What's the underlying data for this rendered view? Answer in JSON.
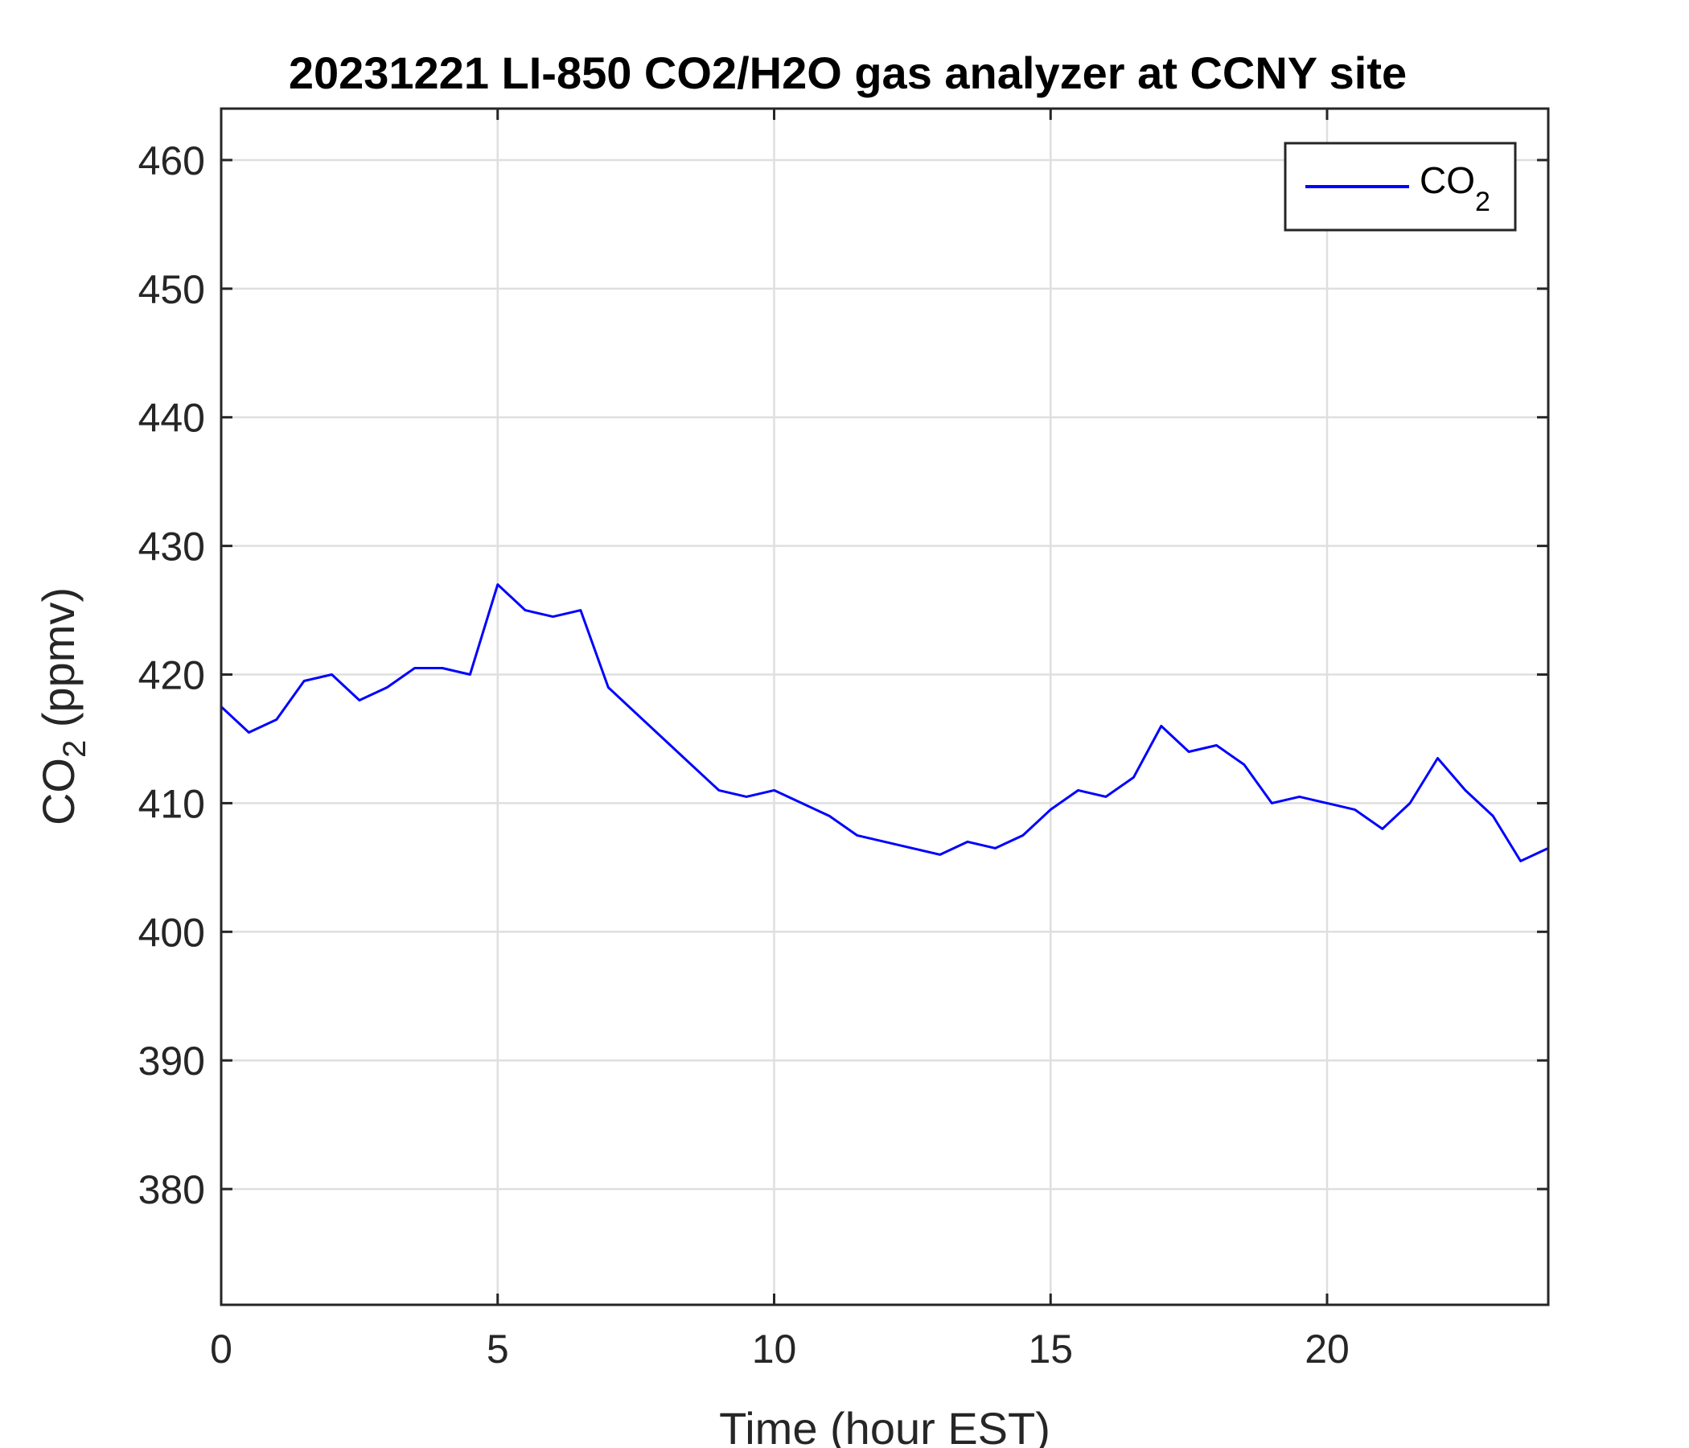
{
  "chart_data": {
    "type": "line",
    "title": "20231221 LI-850 CO2/H2O gas analyzer at CCNY site",
    "xlabel": "Time (hour EST)",
    "ylabel": {
      "main": "CO",
      "sub": "2",
      "unit": " (ppmv)"
    },
    "xlim": [
      0,
      24
    ],
    "ylim": [
      371,
      464
    ],
    "xticks": [
      0,
      5,
      10,
      15,
      20
    ],
    "yticks": [
      380,
      390,
      400,
      410,
      420,
      430,
      440,
      450,
      460
    ],
    "grid": true,
    "legend": {
      "position": "top-right",
      "label": "CO",
      "label_sub": "2"
    },
    "series": [
      {
        "name": "CO2",
        "color": "#0000ff",
        "x": [
          0,
          0.5,
          1,
          1.5,
          2,
          2.5,
          3,
          3.5,
          4,
          4.5,
          5,
          5.5,
          6,
          6.5,
          7,
          7.5,
          8,
          8.5,
          9,
          9.5,
          10,
          10.5,
          11,
          11.5,
          12,
          12.5,
          13,
          13.5,
          14,
          14.5,
          15,
          15.5,
          16,
          16.5,
          17,
          17.5,
          18,
          18.5,
          19,
          19.5,
          20,
          20.5,
          21,
          21.5,
          22,
          22.5,
          23,
          23.5,
          24
        ],
        "y": [
          417.5,
          415.5,
          416.5,
          419.5,
          420,
          418,
          419,
          420.5,
          420.5,
          420,
          427,
          425,
          424.5,
          425,
          419,
          417,
          415,
          413,
          411,
          410.5,
          411,
          410,
          409,
          407.5,
          407,
          406.5,
          406,
          407,
          406.5,
          407.5,
          409.5,
          411,
          410.5,
          412,
          416,
          414,
          414.5,
          413,
          410,
          410.5,
          410,
          409.5,
          408,
          410,
          413.5,
          411,
          409,
          405.5,
          406.5
        ]
      }
    ]
  }
}
